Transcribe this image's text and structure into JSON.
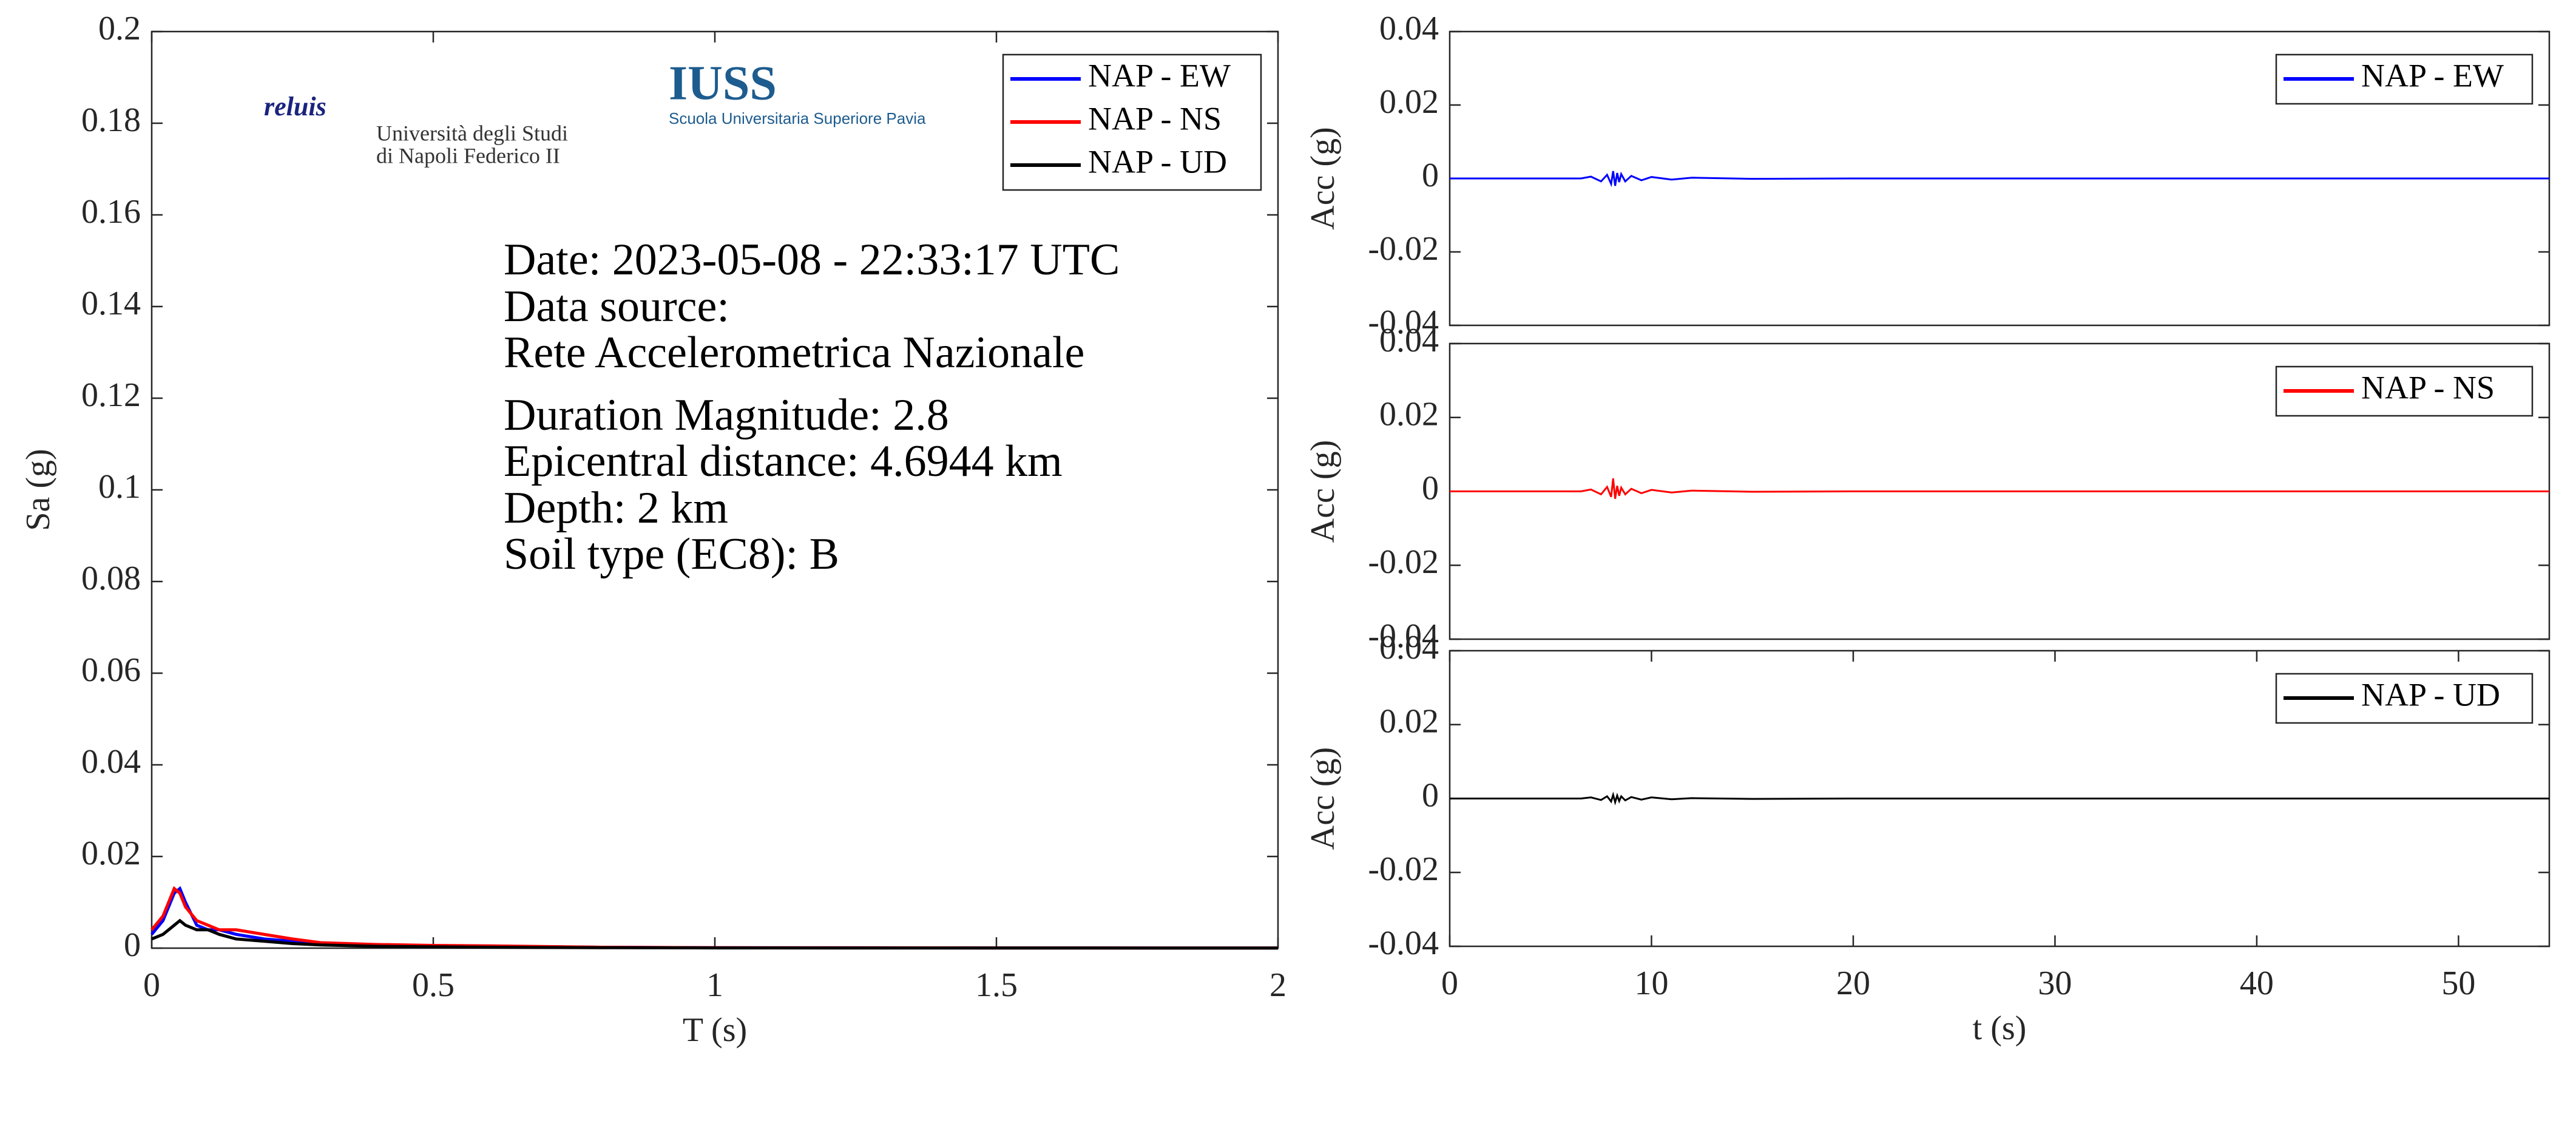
{
  "chart_data": [
    {
      "type": "line",
      "xlabel": "T (s)",
      "ylabel": "Sa (g)",
      "xlim": [
        0,
        2
      ],
      "xticks": [
        0,
        0.5,
        1,
        1.5,
        2
      ],
      "ylim": [
        0,
        0.2
      ],
      "yticks": [
        0,
        0.02,
        0.04,
        0.06,
        0.08,
        0.1,
        0.12,
        0.14,
        0.16,
        0.18,
        0.2
      ],
      "legend": "upper right",
      "x": [
        0,
        0.02,
        0.04,
        0.05,
        0.06,
        0.08,
        0.1,
        0.12,
        0.15,
        0.2,
        0.25,
        0.3,
        0.4,
        0.5,
        0.6,
        0.8,
        1,
        1.5,
        2
      ],
      "series": [
        {
          "name": "NAP - EW",
          "color": "#0000ff",
          "values": [
            0.003,
            0.006,
            0.012,
            0.013,
            0.01,
            0.005,
            0.004,
            0.004,
            0.003,
            0.002,
            0.0015,
            0.001,
            0.0006,
            0.0005,
            0.0004,
            0.0002,
            0.0001,
            5e-05,
            3e-05
          ]
        },
        {
          "name": "NAP - NS",
          "color": "#ff0000",
          "values": [
            0.004,
            0.007,
            0.013,
            0.012,
            0.009,
            0.006,
            0.005,
            0.004,
            0.004,
            0.003,
            0.002,
            0.0012,
            0.0008,
            0.0006,
            0.0005,
            0.0002,
            0.0001,
            5e-05,
            3e-05
          ]
        },
        {
          "name": "NAP - UD",
          "color": "#000000",
          "values": [
            0.002,
            0.003,
            0.005,
            0.006,
            0.005,
            0.004,
            0.004,
            0.003,
            0.002,
            0.0015,
            0.001,
            0.0007,
            0.0004,
            0.0003,
            0.0002,
            0.0001,
            5e-05,
            3e-05,
            2e-05
          ]
        }
      ],
      "annotations": [
        "Date: 2023-05-08 - 22:33:17 UTC",
        "Data source:",
        "Rete Accelerometrica Nazionale",
        "Duration Magnitude: 2.8",
        "Epicentral distance: 4.6944 km",
        "Depth: 2 km",
        "Soil type (EC8): B"
      ],
      "logos": [
        "reluis",
        "Università degli Studi",
        "di Napoli Federico II",
        "IUSS",
        "Scuola Universitaria Superiore Pavia"
      ]
    },
    {
      "type": "line",
      "ylabel": "Acc (g)",
      "xlim": [
        0,
        54.5
      ],
      "ylim": [
        -0.04,
        0.04
      ],
      "yticks": [
        -0.04,
        -0.02,
        0,
        0.02,
        0.04
      ],
      "legend": "upper right",
      "x": [
        0,
        6.5,
        7,
        7.5,
        7.8,
        8,
        8.1,
        8.2,
        8.3,
        8.4,
        8.5,
        8.7,
        9,
        9.5,
        10,
        11,
        12,
        15,
        20,
        54.5
      ],
      "series": [
        {
          "name": "NAP - EW",
          "color": "#0000ff",
          "values": [
            0,
            0,
            0.0005,
            -0.0008,
            0.001,
            -0.0015,
            0.002,
            -0.002,
            0.0015,
            -0.001,
            0.0012,
            -0.0008,
            0.0007,
            -0.0005,
            0.0004,
            -0.0003,
            0.0002,
            -0.0001,
            0,
            0
          ]
        }
      ]
    },
    {
      "type": "line",
      "ylabel": "Acc (g)",
      "xlim": [
        0,
        54.5
      ],
      "ylim": [
        -0.04,
        0.04
      ],
      "yticks": [
        -0.04,
        -0.02,
        0,
        0.02,
        0.04
      ],
      "legend": "upper right",
      "x": [
        0,
        6.5,
        7,
        7.5,
        7.8,
        8,
        8.1,
        8.2,
        8.3,
        8.4,
        8.5,
        8.7,
        9,
        9.5,
        10,
        11,
        12,
        15,
        20,
        54.5
      ],
      "series": [
        {
          "name": "NAP - NS",
          "color": "#ff0000",
          "values": [
            0,
            0,
            0.0005,
            -0.0008,
            0.0012,
            -0.0015,
            0.0035,
            -0.002,
            0.0015,
            -0.0012,
            0.001,
            -0.0008,
            0.0007,
            -0.0005,
            0.0004,
            -0.0003,
            0.0002,
            -0.0001,
            0,
            0
          ]
        }
      ]
    },
    {
      "type": "line",
      "xlabel": "t (s)",
      "ylabel": "Acc (g)",
      "xlim": [
        0,
        54.5
      ],
      "xticks": [
        0,
        10,
        20,
        30,
        40,
        50
      ],
      "ylim": [
        -0.04,
        0.04
      ],
      "yticks": [
        -0.04,
        -0.02,
        0,
        0.02,
        0.04
      ],
      "legend": "upper right",
      "x": [
        0,
        6.5,
        7,
        7.5,
        7.8,
        8,
        8.1,
        8.2,
        8.3,
        8.4,
        8.5,
        8.7,
        9,
        9.5,
        10,
        11,
        12,
        15,
        20,
        54.5
      ],
      "series": [
        {
          "name": "NAP - UD",
          "color": "#000000",
          "values": [
            0,
            0,
            0.0003,
            -0.0004,
            0.0006,
            -0.0008,
            0.001,
            -0.001,
            0.0008,
            -0.0007,
            0.0006,
            -0.0005,
            0.0004,
            -0.0003,
            0.0003,
            -0.0002,
            0.0001,
            -0.0001,
            0,
            0
          ]
        }
      ]
    }
  ]
}
